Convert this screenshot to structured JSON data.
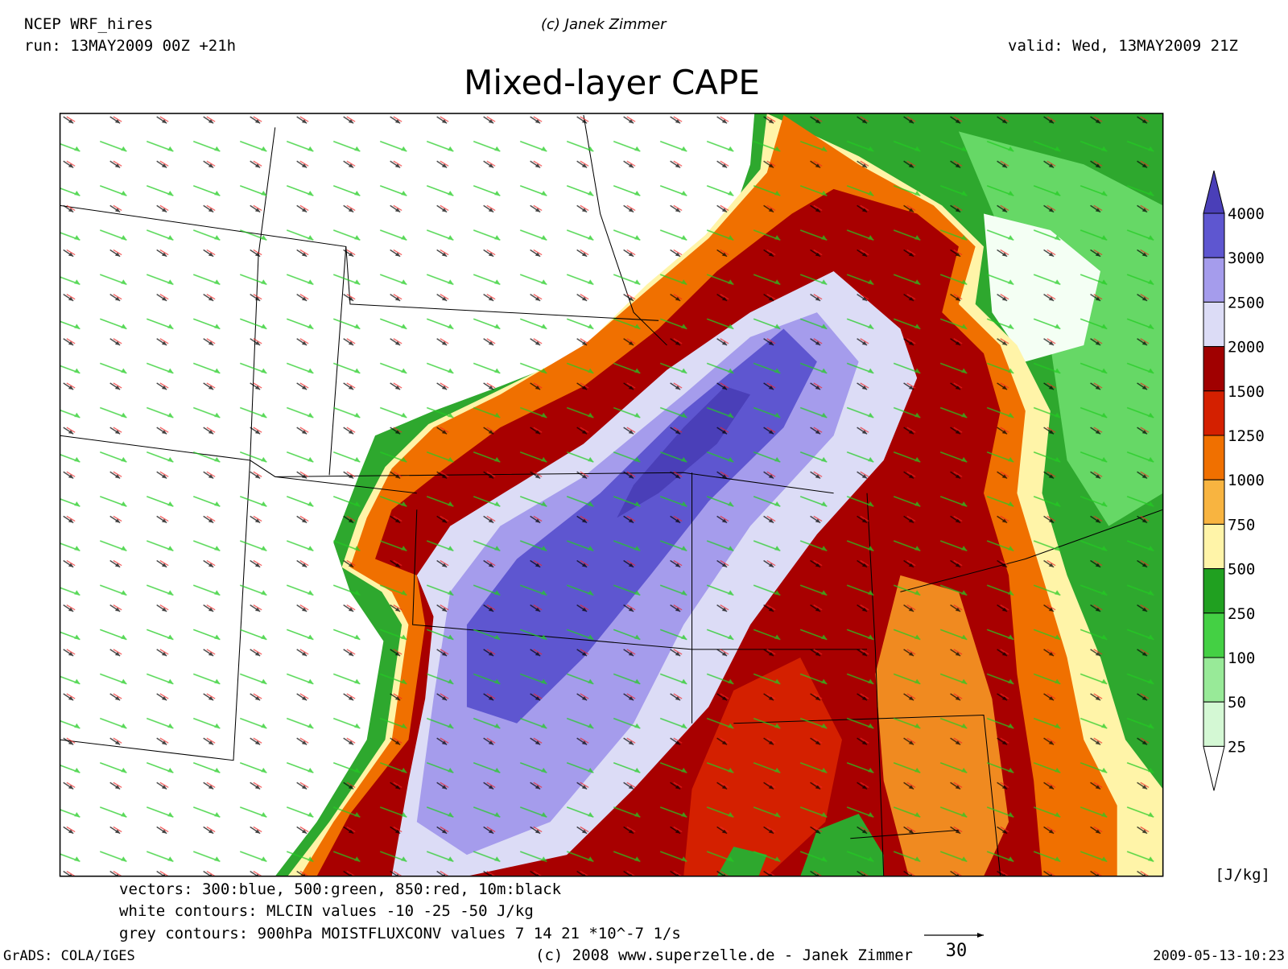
{
  "header": {
    "model": "NCEP WRF_hires",
    "run": "run: 13MAY2009 00Z +21h",
    "copyright": "(c) Janek Zimmer",
    "valid": "valid: Wed, 13MAY2009 21Z",
    "title": "Mixed-layer CAPE"
  },
  "colorbar": {
    "labels": [
      4000,
      3000,
      2500,
      2000,
      1500,
      1250,
      1000,
      750,
      500,
      250,
      100,
      50,
      25
    ],
    "colors": [
      "#4a3fb8",
      "#5e56d0",
      "#a59cec",
      "#dcdcf6",
      "#a00000",
      "#d42000",
      "#f07000",
      "#f8b440",
      "#fff4a8",
      "#20a020",
      "#44d044",
      "#98ea98",
      "#d4f8d4",
      "#ffffff"
    ],
    "unit": "[J/kg]"
  },
  "footer": {
    "vectors": "vectors: 300:blue, 500:green, 850:red, 10m:black",
    "white_contours": "white contours: MLCIN values -10 -25 -50 J/kg",
    "grey_contours": "grey contours: 900hPa MOISTFLUXCONV values 7 14 21 *10^-7 1/s",
    "grads": "GrADS: COLA/IGES",
    "site": "(c) 2008 www.superzelle.de - Janek Zimmer",
    "timestamp": "2009-05-13-10:23",
    "scale_label": "30"
  }
}
